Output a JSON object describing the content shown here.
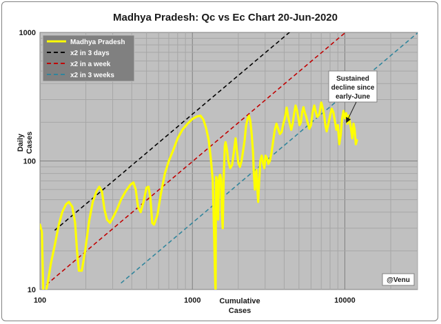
{
  "chart_data": {
    "type": "line",
    "title": "Madhya Pradesh: Qc vs Ec Chart 20-Jun-2020",
    "xlabel": [
      "Cumulative",
      "Cases"
    ],
    "ylabel": [
      "Daily",
      "Cases"
    ],
    "x_scale": "log",
    "y_scale": "log",
    "xlim": [
      100,
      30000
    ],
    "ylim": [
      10,
      1000
    ],
    "x_ticks": [
      {
        "value": 100,
        "label": "100"
      },
      {
        "value": 1000,
        "label": "1000"
      },
      {
        "value": 10000,
        "label": "10000"
      }
    ],
    "y_ticks": [
      {
        "value": 10,
        "label": "10"
      },
      {
        "value": 100,
        "label": "100"
      },
      {
        "value": 1000,
        "label": "1000"
      }
    ],
    "grid": true,
    "legend_position": "top-left",
    "series": [
      {
        "name": "Madhya Pradesh",
        "style": "solid",
        "color": "#ffff00",
        "points": [
          [
            100,
            32
          ],
          [
            103,
            28
          ],
          [
            105,
            10
          ],
          [
            108,
            9
          ],
          [
            112,
            11
          ],
          [
            118,
            16
          ],
          [
            125,
            22
          ],
          [
            133,
            32
          ],
          [
            140,
            40
          ],
          [
            148,
            46
          ],
          [
            155,
            48
          ],
          [
            163,
            44
          ],
          [
            170,
            33
          ],
          [
            175,
            20
          ],
          [
            180,
            14
          ],
          [
            188,
            14
          ],
          [
            198,
            20
          ],
          [
            210,
            34
          ],
          [
            222,
            48
          ],
          [
            235,
            58
          ],
          [
            245,
            63
          ],
          [
            255,
            58
          ],
          [
            265,
            42
          ],
          [
            275,
            35
          ],
          [
            288,
            33
          ],
          [
            300,
            36
          ],
          [
            320,
            42
          ],
          [
            340,
            50
          ],
          [
            365,
            58
          ],
          [
            390,
            65
          ],
          [
            410,
            68
          ],
          [
            425,
            60
          ],
          [
            440,
            44
          ],
          [
            458,
            40
          ],
          [
            478,
            48
          ],
          [
            500,
            62
          ],
          [
            515,
            63
          ],
          [
            530,
            52
          ],
          [
            545,
            33
          ],
          [
            560,
            32
          ],
          [
            590,
            38
          ],
          [
            620,
            55
          ],
          [
            660,
            80
          ],
          [
            700,
            100
          ],
          [
            750,
            122
          ],
          [
            800,
            150
          ],
          [
            860,
            175
          ],
          [
            930,
            195
          ],
          [
            1000,
            212
          ],
          [
            1070,
            222
          ],
          [
            1130,
            225
          ],
          [
            1180,
            210
          ],
          [
            1230,
            180
          ],
          [
            1280,
            145
          ],
          [
            1320,
            105
          ],
          [
            1360,
            70
          ],
          [
            1390,
            25
          ],
          [
            1410,
            12
          ],
          [
            1420,
            9
          ],
          [
            1425,
            55
          ],
          [
            1430,
            75
          ],
          [
            1450,
            70
          ],
          [
            1465,
            60
          ],
          [
            1475,
            35
          ],
          [
            1485,
            50
          ],
          [
            1500,
            75
          ],
          [
            1520,
            78
          ],
          [
            1545,
            72
          ],
          [
            1560,
            40
          ],
          [
            1580,
            30
          ],
          [
            1605,
            75
          ],
          [
            1630,
            130
          ],
          [
            1650,
            140
          ],
          [
            1680,
            125
          ],
          [
            1720,
            100
          ],
          [
            1770,
            88
          ],
          [
            1820,
            93
          ],
          [
            1870,
            118
          ],
          [
            1920,
            150
          ],
          [
            1960,
            120
          ],
          [
            2000,
            97
          ],
          [
            2050,
            90
          ],
          [
            2100,
            100
          ],
          [
            2150,
            120
          ],
          [
            2200,
            145
          ],
          [
            2250,
            188
          ],
          [
            2300,
            212
          ],
          [
            2350,
            225
          ],
          [
            2400,
            205
          ],
          [
            2450,
            160
          ],
          [
            2500,
            115
          ],
          [
            2530,
            80
          ],
          [
            2570,
            60
          ],
          [
            2600,
            72
          ],
          [
            2630,
            85
          ],
          [
            2670,
            60
          ],
          [
            2700,
            48
          ],
          [
            2740,
            70
          ],
          [
            2790,
            100
          ],
          [
            2850,
            110
          ],
          [
            2900,
            98
          ],
          [
            2960,
            88
          ],
          [
            3020,
            110
          ],
          [
            3080,
            105
          ],
          [
            3150,
            95
          ],
          [
            3220,
            100
          ],
          [
            3300,
            115
          ],
          [
            3380,
            140
          ],
          [
            3470,
            175
          ],
          [
            3560,
            195
          ],
          [
            3650,
            178
          ],
          [
            3750,
            162
          ],
          [
            3850,
            168
          ],
          [
            3950,
            195
          ],
          [
            4050,
            218
          ],
          [
            4150,
            260
          ],
          [
            4250,
            220
          ],
          [
            4350,
            195
          ],
          [
            4450,
            175
          ],
          [
            4550,
            195
          ],
          [
            4650,
            235
          ],
          [
            4750,
            270
          ],
          [
            4850,
            250
          ],
          [
            4950,
            218
          ],
          [
            5050,
            190
          ],
          [
            5150,
            200
          ],
          [
            5250,
            240
          ],
          [
            5350,
            262
          ],
          [
            5450,
            240
          ],
          [
            5550,
            225
          ],
          [
            5700,
            200
          ],
          [
            5850,
            178
          ],
          [
            6000,
            190
          ],
          [
            6150,
            240
          ],
          [
            6300,
            270
          ],
          [
            6450,
            240
          ],
          [
            6600,
            220
          ],
          [
            6800,
            230
          ],
          [
            7000,
            285
          ],
          [
            7150,
            260
          ],
          [
            7300,
            230
          ],
          [
            7450,
            190
          ],
          [
            7600,
            170
          ],
          [
            7800,
            195
          ],
          [
            8000,
            225
          ],
          [
            8200,
            255
          ],
          [
            8400,
            240
          ],
          [
            8600,
            205
          ],
          [
            8800,
            175
          ],
          [
            9000,
            190
          ],
          [
            9200,
            135
          ],
          [
            9400,
            160
          ],
          [
            9600,
            215
          ],
          [
            9800,
            245
          ],
          [
            10000,
            215
          ],
          [
            10200,
            235
          ],
          [
            10400,
            195
          ],
          [
            10600,
            225
          ],
          [
            10800,
            200
          ],
          [
            11000,
            175
          ],
          [
            11200,
            150
          ],
          [
            11400,
            195
          ],
          [
            11600,
            175
          ],
          [
            11800,
            135
          ],
          [
            12000,
            145
          ]
        ]
      },
      {
        "name": "x2 in 3 days",
        "style": "dashed",
        "color": "#000000",
        "doubling_days": 3,
        "x_start": 125,
        "x_end": 30000
      },
      {
        "name": "x2 in a week",
        "style": "dashed",
        "color": "#c00000",
        "doubling_days": 7,
        "x_start": 110,
        "x_end": 30000
      },
      {
        "name": "x2 in 3 weeks",
        "style": "dashed",
        "color": "#31859c",
        "doubling_days": 21,
        "x_start": 340,
        "x_end": 30000
      }
    ],
    "annotations": [
      {
        "text": [
          "Sustained",
          "decline since",
          "early-June"
        ],
        "points_to": [
          10500,
          192
        ]
      },
      {
        "text": [
          "@Venu"
        ]
      }
    ]
  }
}
